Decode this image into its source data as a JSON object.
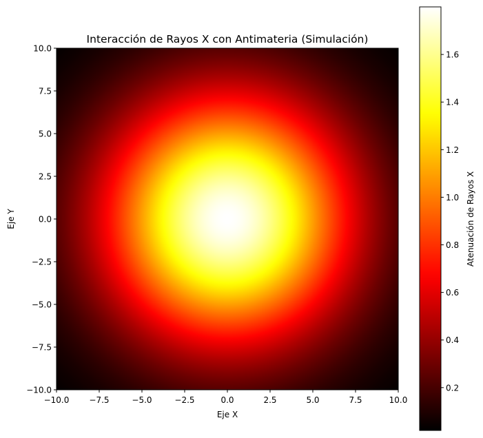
{
  "chart_data": {
    "type": "heatmap",
    "title": "Interacción de Rayos X con Antimateria (Simulación)",
    "xlabel": "Eje X",
    "ylabel": "Eje Y",
    "xlim": [
      -10,
      10
    ],
    "ylim": [
      -10,
      10
    ],
    "x_ticks": [
      -10,
      -7.5,
      -5,
      -2.5,
      0,
      2.5,
      5,
      7.5,
      10
    ],
    "y_ticks": [
      -10,
      -7.5,
      -5,
      -2.5,
      0,
      2.5,
      5,
      7.5,
      10
    ],
    "x_tick_labels": [
      "−10.0",
      "−7.5",
      "−5.0",
      "−2.5",
      "0.0",
      "2.5",
      "5.0",
      "7.5",
      "10.0"
    ],
    "y_tick_labels": [
      "−10.0",
      "−7.5",
      "−5.0",
      "−2.5",
      "0.0",
      "2.5",
      "5.0",
      "7.5",
      "10.0"
    ],
    "colormap": "hot",
    "peak_value": 1.8,
    "peak_center": [
      0,
      0
    ],
    "colorbar": {
      "label": "Atenuación de Rayos X",
      "range": [
        0.02,
        1.8
      ],
      "ticks": [
        0.2,
        0.4,
        0.6,
        0.8,
        1.0,
        1.2,
        1.4,
        1.6
      ],
      "tick_labels": [
        "0.2",
        "0.4",
        "0.6",
        "0.8",
        "1.0",
        "1.2",
        "1.4",
        "1.6"
      ]
    }
  }
}
